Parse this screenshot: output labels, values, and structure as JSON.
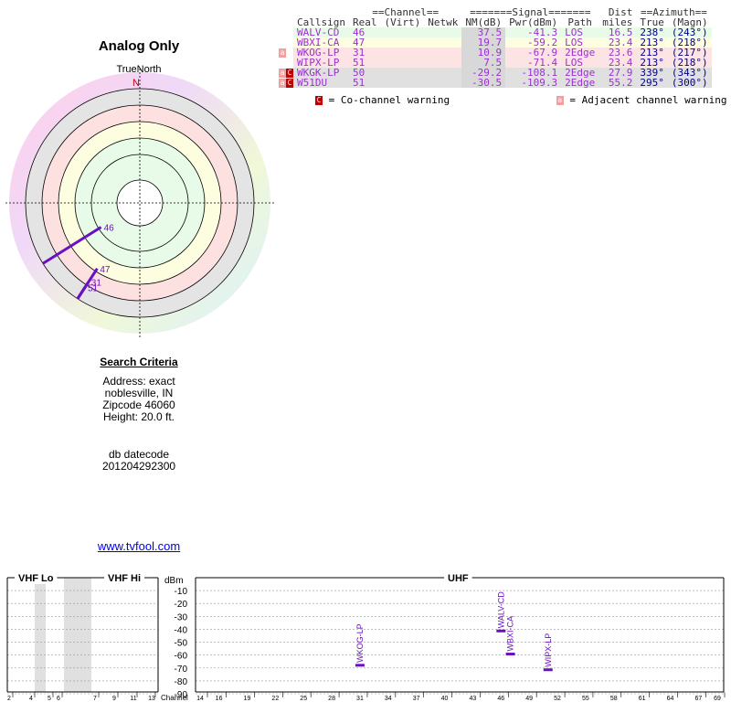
{
  "title": "Analog Only",
  "true_north_label": "TrueNorth",
  "north_marker": "N",
  "search": {
    "heading": "Search Criteria",
    "address": "Address: exact",
    "city": "noblesville, IN",
    "zipcode": "Zipcode 46060",
    "height": "Height: 20.0 ft.",
    "db_label": "db datecode",
    "db_value": "201204292300"
  },
  "site_link": "www.tvfool.com",
  "table": {
    "group_channel": "==Channel==",
    "group_signal": "=======Signal=======",
    "group_dist": "Dist",
    "group_azimuth": "==Azimuth==",
    "col_callsign": "Callsign",
    "col_real": "Real",
    "col_virt": "(Virt)",
    "col_netwk": "Netwk",
    "col_nm": "NM(dB)",
    "col_pwr": "Pwr(dBm)",
    "col_path": "Path",
    "col_miles": "miles",
    "col_true": "True",
    "col_magn": "(Magn)",
    "rows": [
      {
        "badges": "",
        "callsign": "WALV-CD",
        "real": "46",
        "nm": "37.5",
        "pwr": "-41.3",
        "path": "LOS",
        "dist": "16.5",
        "true": "238°",
        "magn": "(243°)",
        "bg": "#e8fbe8",
        "color": "#9b30d0"
      },
      {
        "badges": "",
        "callsign": "WBXI-CA",
        "real": "47",
        "nm": "19.7",
        "pwr": "-59.2",
        "path": "LOS",
        "dist": "23.4",
        "true": "213°",
        "magn": "(218°)",
        "bg": "#fdfde0",
        "color": "#9b30d0"
      },
      {
        "badges": "a",
        "callsign": "WKOG-LP",
        "real": "31",
        "nm": "10.9",
        "pwr": "-67.9",
        "path": "2Edge",
        "dist": "23.6",
        "true": "213°",
        "magn": "(217°)",
        "bg": "#fde4e4",
        "color": "#9b30d0"
      },
      {
        "badges": "",
        "callsign": "WIPX-LP",
        "real": "51",
        "nm": "7.5",
        "pwr": "-71.4",
        "path": "LOS",
        "dist": "23.4",
        "true": "213°",
        "magn": "(218°)",
        "bg": "#fde4e4",
        "color": "#9b30d0"
      },
      {
        "badges": "ac",
        "callsign": "WKGK-LP",
        "real": "50",
        "nm": "-29.2",
        "pwr": "-108.1",
        "path": "2Edge",
        "dist": "27.9",
        "true": "339°",
        "magn": "(343°)",
        "bg": "#e0e0e0",
        "color": "#9b30d0"
      },
      {
        "badges": "ac",
        "callsign": "W51DU",
        "real": "51",
        "nm": "-30.5",
        "pwr": "-109.3",
        "path": "2Edge",
        "dist": "55.2",
        "true": "295°",
        "magn": "(300°)",
        "bg": "#e0e0e0",
        "color": "#9b30d0"
      }
    ]
  },
  "legend": {
    "co_badge": "C",
    "co_text": "= Co-channel warning",
    "adj_badge": "a",
    "adj_text": "= Adjacent channel warning"
  },
  "chart_data": [
    {
      "type": "polar",
      "title": "Analog Only",
      "north_label": "TrueNorth",
      "markers": [
        {
          "channel": "46",
          "azimuth_true": 238,
          "nm_db": 37.5
        },
        {
          "channel": "47",
          "azimuth_true": 213,
          "nm_db": 19.7
        },
        {
          "channel": "31",
          "azimuth_true": 213,
          "nm_db": 10.9
        },
        {
          "channel": "51",
          "azimuth_true": 213,
          "nm_db": 7.5
        }
      ]
    },
    {
      "type": "bar",
      "ylabel": "dBm",
      "xlabel": "Channel",
      "ylim": [
        -90,
        0
      ],
      "y_ticks": [
        "-10",
        "-20",
        "-30",
        "-40",
        "-50",
        "-60",
        "-70",
        "-80",
        "-90"
      ],
      "bands": {
        "vhf_lo": "VHF Lo",
        "vhf_hi": "VHF Hi",
        "uhf": "UHF"
      },
      "x_ticks_vhf": [
        "2",
        "4",
        "5",
        "6",
        "7",
        "9",
        "11",
        "13"
      ],
      "x_ticks_uhf": [
        "14",
        "16",
        "19",
        "22",
        "25",
        "28",
        "31",
        "34",
        "37",
        "40",
        "43",
        "46",
        "49",
        "52",
        "55",
        "58",
        "61",
        "64",
        "67",
        "69"
      ],
      "stations": [
        {
          "callsign": "WKOG-LP",
          "channel": 31,
          "dbm": -67.9
        },
        {
          "callsign": "WALV-CD",
          "channel": 46,
          "dbm": -41.3
        },
        {
          "callsign": "WBXI-CA",
          "channel": 47,
          "dbm": -59.2
        },
        {
          "callsign": "WIPX-LP",
          "channel": 51,
          "dbm": -71.4
        }
      ]
    }
  ]
}
